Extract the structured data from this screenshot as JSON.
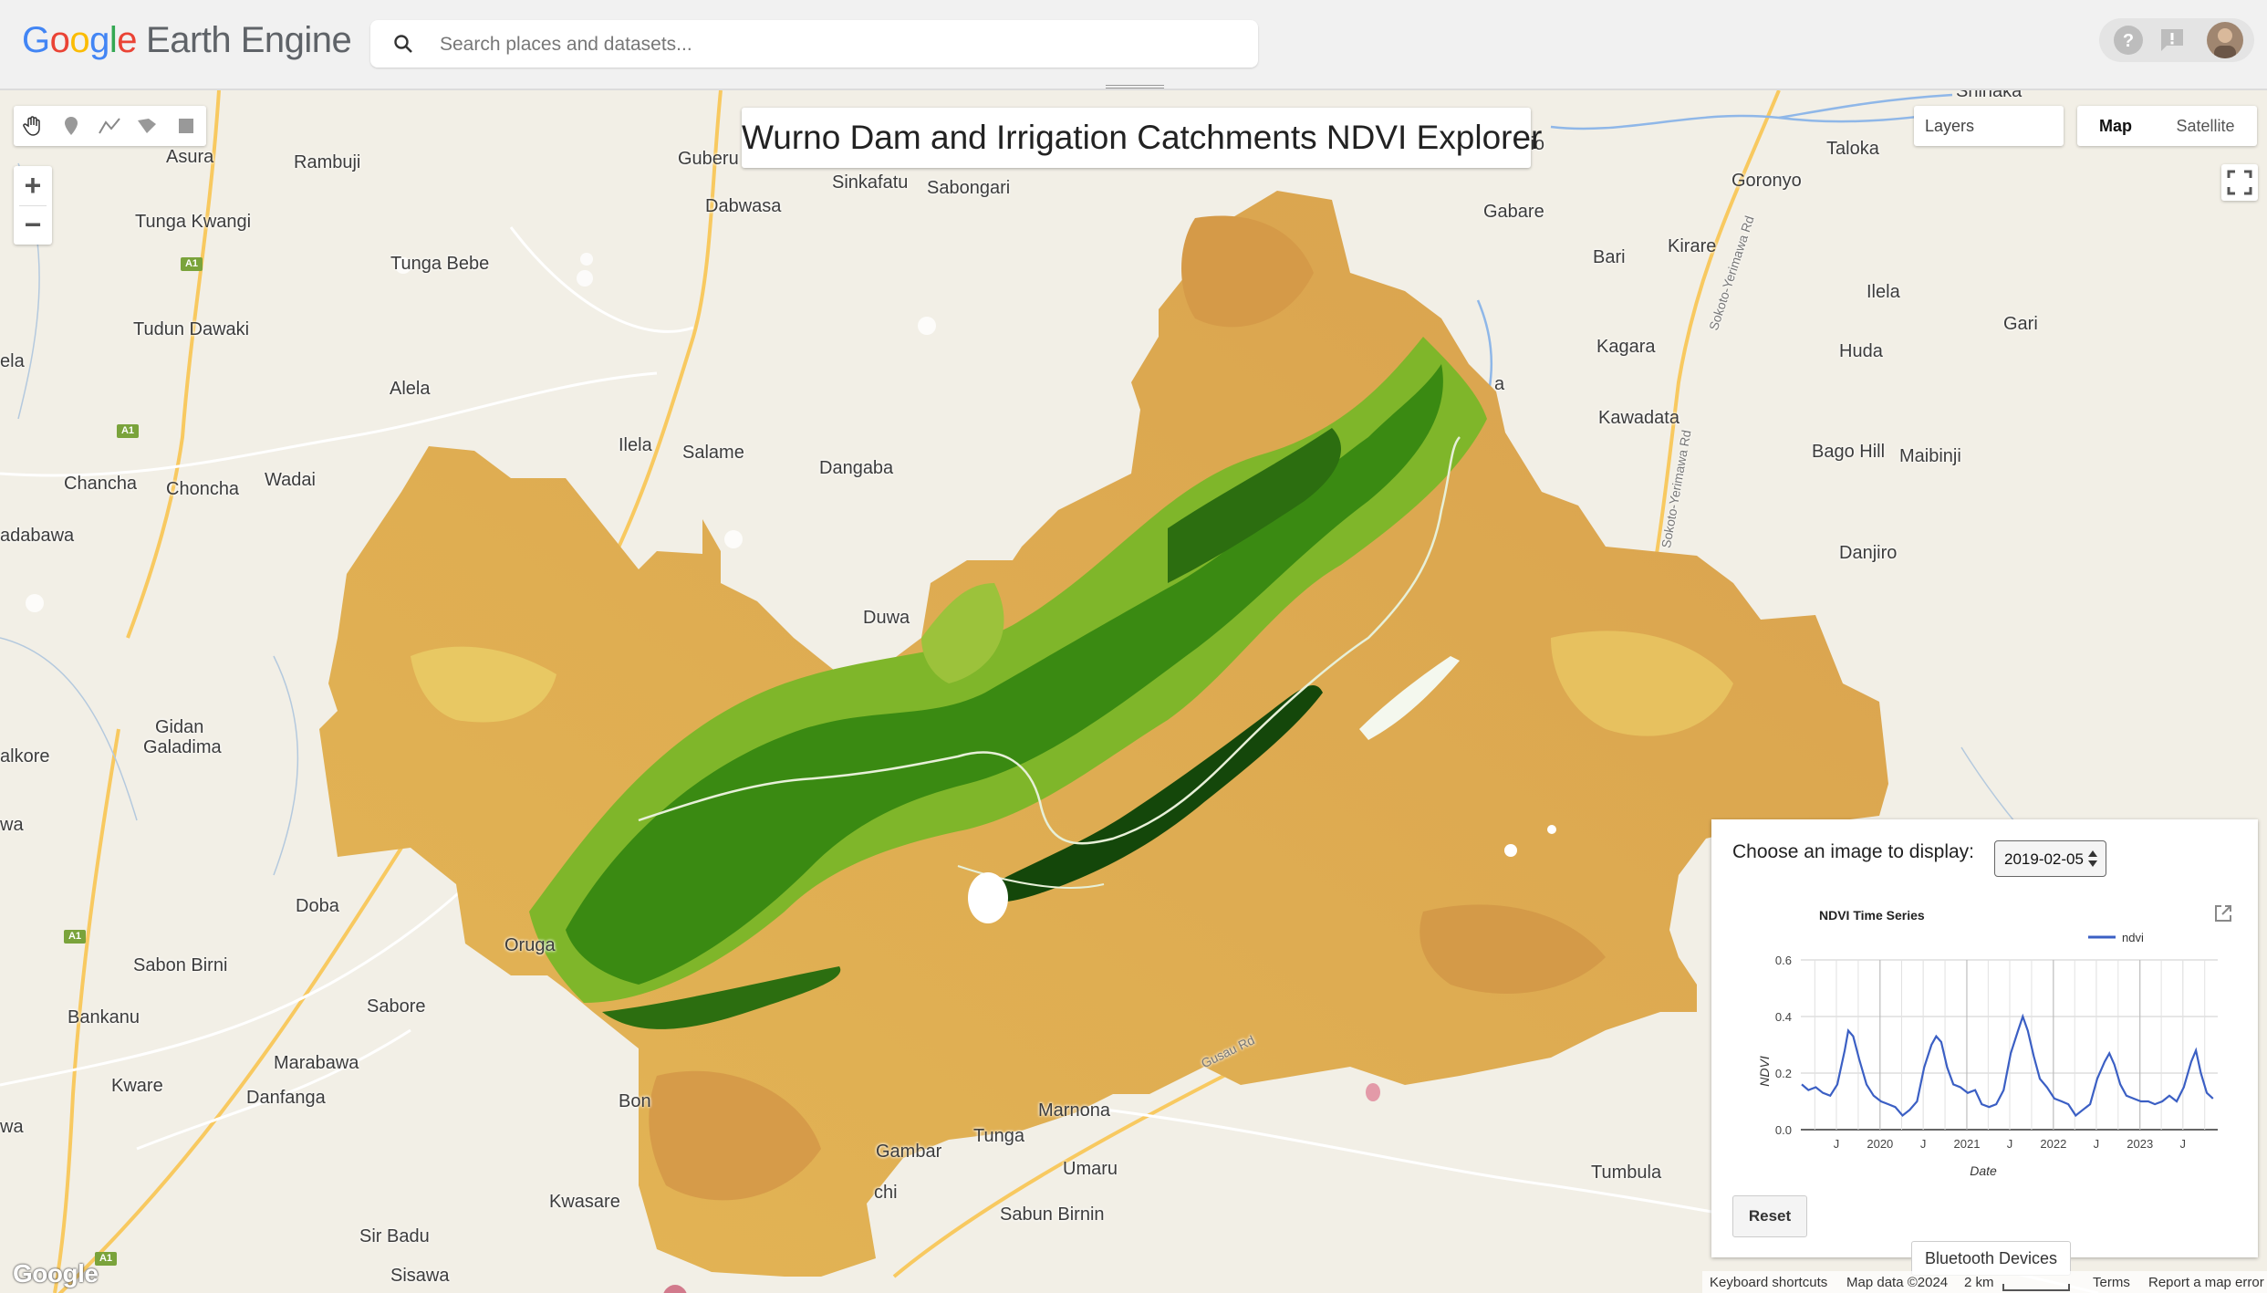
{
  "header": {
    "logo_google": [
      "G",
      "o",
      "o",
      "g",
      "l",
      "e"
    ],
    "logo_product": "Earth Engine",
    "search_placeholder": "Search places and datasets..."
  },
  "map": {
    "title": "Wurno Dam and Irrigation Catchments NDVI Explorer",
    "layers_label": "Layers",
    "map_type_map": "Map",
    "map_type_satellite": "Satellite",
    "zoom_in": "+",
    "zoom_out": "−",
    "places": [
      {
        "name": "Asura"
      },
      {
        "name": "Rambuji"
      },
      {
        "name": "Guberu"
      },
      {
        "name": "Sinkafatu"
      },
      {
        "name": "Sabongari"
      },
      {
        "name": "Dabwasa"
      },
      {
        "name": "Tunga Kwangi"
      },
      {
        "name": "Tunga Bebe"
      },
      {
        "name": "Tudun Dawaki"
      },
      {
        "name": "ela"
      },
      {
        "name": "Alela"
      },
      {
        "name": "Ilela"
      },
      {
        "name": "Salame"
      },
      {
        "name": "Dangaba"
      },
      {
        "name": "Chancha"
      },
      {
        "name": "Choncha"
      },
      {
        "name": "Wadai"
      },
      {
        "name": "adabawa"
      },
      {
        "name": "Duwa"
      },
      {
        "name": "Gidan"
      },
      {
        "name": "Galadima"
      },
      {
        "name": "alkore"
      },
      {
        "name": "wa"
      },
      {
        "name": "Doba"
      },
      {
        "name": "Oruga"
      },
      {
        "name": "Sabon Birni"
      },
      {
        "name": "Sabore"
      },
      {
        "name": "Bankanu"
      },
      {
        "name": "Marabawa"
      },
      {
        "name": "Kware"
      },
      {
        "name": "Danfanga"
      },
      {
        "name": "Bon"
      },
      {
        "name": "Marnona"
      },
      {
        "name": "Tunga"
      },
      {
        "name": "Gambar"
      },
      {
        "name": "Umaru"
      },
      {
        "name": "Kwasare"
      },
      {
        "name": "chi"
      },
      {
        "name": "Sabun Birnin"
      },
      {
        "name": "Sir Badu"
      },
      {
        "name": "Sisawa"
      },
      {
        "name": "wa"
      },
      {
        "name": "Tumbula"
      },
      {
        "name": "Gabare"
      },
      {
        "name": "Taloka"
      },
      {
        "name": "Goronyo"
      },
      {
        "name": "Bari"
      },
      {
        "name": "Kirare"
      },
      {
        "name": "Ilela"
      },
      {
        "name": "Gari"
      },
      {
        "name": "Kagara"
      },
      {
        "name": "Huda"
      },
      {
        "name": "Kawadata"
      },
      {
        "name": "Bago Hill"
      },
      {
        "name": "Maibinji"
      },
      {
        "name": "Danjiro"
      },
      {
        "name": "Shinaka"
      },
      {
        "name": "jio"
      },
      {
        "name": "a"
      }
    ],
    "road_names": [
      "Sokoto-Yerimawa Rd",
      "Sokoto-Yerimawa Rd",
      "Gusau Rd"
    ],
    "shields": [
      "A1",
      "A1",
      "A1",
      "A1"
    ]
  },
  "panel": {
    "prompt": "Choose an image to display:",
    "selected_date": "2019-02-05",
    "reset_label": "Reset",
    "popout_icon": "open-in-new-icon"
  },
  "chart_data": {
    "type": "line",
    "title": "NDVI Time Series",
    "xlabel": "Date",
    "ylabel": "NDVI",
    "ylim": [
      0.0,
      0.6
    ],
    "yticks": [
      "0.0",
      "0.2",
      "0.4",
      "0.6"
    ],
    "xticks": [
      "J",
      "2020",
      "J",
      "2021",
      "J",
      "2022",
      "J",
      "2023",
      "J"
    ],
    "legend": "top-right",
    "grid": true,
    "series": [
      {
        "name": "ndvi",
        "color": "#3b5fc4",
        "x": [
          "2019-02-05",
          "2019-03-05",
          "2019-04-05",
          "2019-05-05",
          "2019-06-05",
          "2019-07-05",
          "2019-08-05",
          "2019-08-20",
          "2019-09-10",
          "2019-10-05",
          "2019-11-05",
          "2019-12-05",
          "2020-01-05",
          "2020-02-05",
          "2020-03-05",
          "2020-04-05",
          "2020-05-05",
          "2020-06-05",
          "2020-07-05",
          "2020-08-05",
          "2020-08-25",
          "2020-09-15",
          "2020-10-10",
          "2020-11-05",
          "2020-12-05",
          "2021-01-05",
          "2021-02-05",
          "2021-03-05",
          "2021-04-05",
          "2021-05-05",
          "2021-06-05",
          "2021-07-05",
          "2021-08-05",
          "2021-08-25",
          "2021-09-15",
          "2021-10-10",
          "2021-11-05",
          "2021-12-05",
          "2022-01-05",
          "2022-02-05",
          "2022-03-05",
          "2022-04-05",
          "2022-05-05",
          "2022-06-05",
          "2022-07-05",
          "2022-08-05",
          "2022-08-25",
          "2022-09-15",
          "2022-10-10",
          "2022-11-05",
          "2022-12-05",
          "2023-01-05",
          "2023-02-05",
          "2023-03-05",
          "2023-04-05",
          "2023-05-05",
          "2023-06-05",
          "2023-07-05",
          "2023-08-05",
          "2023-08-25",
          "2023-09-15",
          "2023-10-10",
          "2023-11-05"
        ],
        "values": [
          0.16,
          0.14,
          0.15,
          0.13,
          0.12,
          0.16,
          0.28,
          0.35,
          0.33,
          0.25,
          0.16,
          0.12,
          0.1,
          0.09,
          0.08,
          0.05,
          0.07,
          0.1,
          0.22,
          0.3,
          0.33,
          0.31,
          0.22,
          0.16,
          0.15,
          0.13,
          0.14,
          0.09,
          0.08,
          0.09,
          0.14,
          0.27,
          0.35,
          0.4,
          0.35,
          0.26,
          0.18,
          0.15,
          0.11,
          0.1,
          0.09,
          0.05,
          0.07,
          0.09,
          0.18,
          0.24,
          0.27,
          0.23,
          0.16,
          0.12,
          0.11,
          0.1,
          0.1,
          0.09,
          0.1,
          0.12,
          0.1,
          0.15,
          0.24,
          0.28,
          0.2,
          0.13,
          0.11
        ]
      }
    ]
  },
  "footer": {
    "tooltip": "Bluetooth Devices",
    "keyboard": "Keyboard shortcuts",
    "mapdata": "Map data ©2024",
    "scale": "2 km",
    "terms": "Terms",
    "report": "Report a map error",
    "google": "Google"
  }
}
